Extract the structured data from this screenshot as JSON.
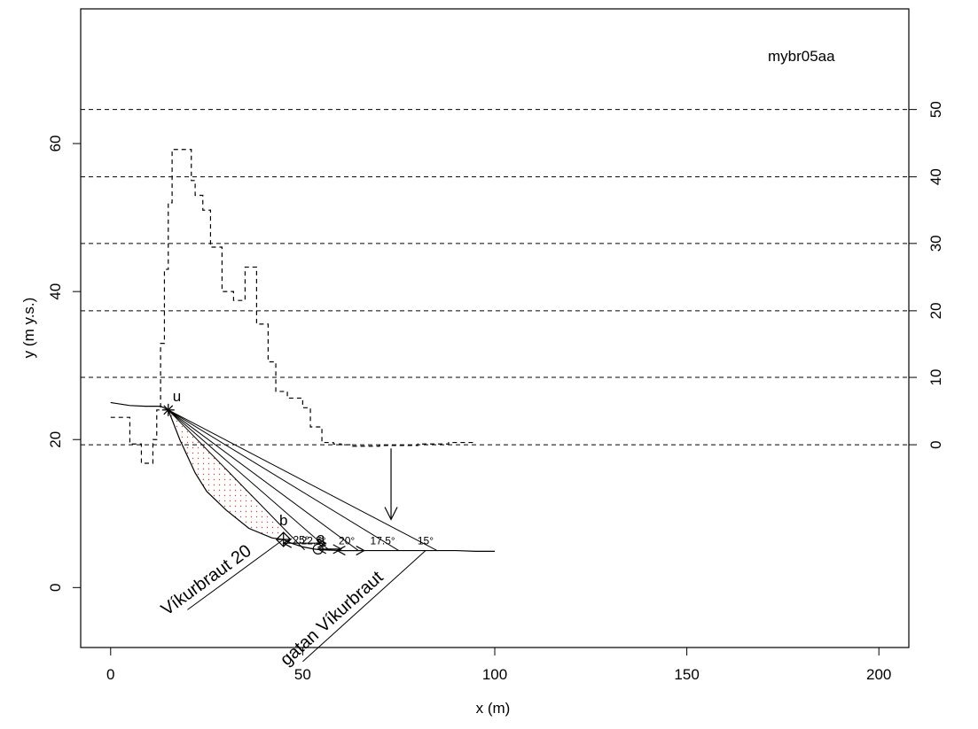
{
  "chart_data": {
    "type": "line",
    "title": "",
    "plot_label": "mybr05aa",
    "xlabel": "x (m)",
    "ylabel": "y (m y.s.)",
    "xlim": [
      -7.8,
      207.8
    ],
    "ylim": [
      -8.1,
      78.2
    ],
    "x_ticks": [
      "0",
      "50",
      "100",
      "150",
      "200"
    ],
    "y_ticks": [
      "0",
      "20",
      "40",
      "60"
    ],
    "right_axis": {
      "ticks": [
        "0",
        "10",
        "20",
        "30",
        "40",
        "50"
      ],
      "y_values": [
        19.3,
        28.4,
        37.4,
        46.5,
        55.5,
        64.6
      ]
    },
    "grid": false,
    "reference_lines": {
      "style": "dashed",
      "y_values": [
        19.3,
        28.4,
        37.4,
        46.5,
        55.5,
        64.6
      ]
    },
    "series": [
      {
        "style": "solid",
        "x": [
          0,
          5,
          9,
          13,
          15,
          18,
          22,
          25,
          30,
          36,
          42,
          45,
          47,
          50,
          53,
          55,
          60,
          65,
          70,
          75,
          80,
          85,
          90,
          95,
          100
        ],
        "y": [
          25,
          24.6,
          24.5,
          24.5,
          24,
          20,
          15.5,
          13,
          10.5,
          8,
          6.7,
          6.5,
          6,
          5.5,
          5.2,
          5.1,
          5.0,
          5.0,
          5.0,
          5.0,
          5.0,
          5.0,
          5.0,
          4.9,
          4.9
        ]
      },
      {
        "style": "dashed",
        "x": [
          0,
          5,
          5,
          8,
          8,
          11,
          11,
          12,
          12,
          13,
          13,
          14,
          14,
          15,
          15,
          16,
          16,
          21,
          21,
          22,
          22,
          24,
          24,
          26,
          26,
          29,
          29,
          32,
          32,
          35,
          35,
          38,
          38,
          41,
          41,
          43,
          43,
          46,
          46,
          50,
          50,
          52,
          52,
          55,
          55,
          58,
          58,
          60,
          60,
          63,
          63,
          70,
          70,
          80,
          80,
          88,
          88,
          95
        ],
        "y": [
          23,
          23,
          19.4,
          19.4,
          16.8,
          16.8,
          20,
          20,
          24,
          24,
          33,
          33,
          43,
          43,
          52,
          52,
          59.2,
          59.2,
          55,
          55,
          53,
          53,
          51,
          51,
          46,
          46,
          40,
          40,
          38.8,
          38.8,
          43.3,
          43.3,
          35.6,
          35.6,
          30.5,
          30.5,
          26.5,
          26.5,
          25.6,
          25.6,
          24.3,
          24.3,
          21.7,
          21.7,
          19.6,
          19.6,
          19.4,
          19.4,
          19.3,
          19.3,
          19.1,
          19.1,
          19.2,
          19.2,
          19.4,
          19.4,
          19.6,
          19.6
        ]
      }
    ],
    "rays": {
      "origin": {
        "x": 15,
        "y": 24
      },
      "ends": [
        {
          "label": "25°",
          "x": 50.5,
          "y": 5.1
        },
        {
          "label": "22.5°",
          "x": 57,
          "y": 5.0
        },
        {
          "label": "20°",
          "x": 64.5,
          "y": 5.0
        },
        {
          "label": "17.5°",
          "x": 75,
          "y": 5.0
        },
        {
          "label": "15°",
          "x": 85,
          "y": 5.0
        }
      ]
    },
    "points": [
      {
        "label": "u",
        "marker": "asterisk",
        "x": 15,
        "y": 24
      },
      {
        "label": "b",
        "marker": "cross-diamond",
        "x": 45,
        "y": 6.5
      },
      {
        "label": "a",
        "marker": "circle",
        "x": 54,
        "y": 5.2
      }
    ],
    "double_arrows": [
      {
        "x1": 45,
        "x2": 56,
        "y": 6.0
      },
      {
        "x1": 54,
        "x2": 60,
        "y": 5.2
      },
      {
        "x1": 59,
        "x2": 66,
        "y": 5.0
      }
    ],
    "down_arrow": {
      "x": 73,
      "y_from": 18.8,
      "y_to": 9.2
    },
    "annotations": [
      {
        "text": "Víkurbraut 20",
        "x_from": 45,
        "y_from": 6.5,
        "x_to": 20,
        "y_to": -3
      },
      {
        "text": "gatan Víkurbraut",
        "x_from": 82,
        "y_from": 5.0,
        "x_to": 50,
        "y_to": -10
      }
    ]
  }
}
